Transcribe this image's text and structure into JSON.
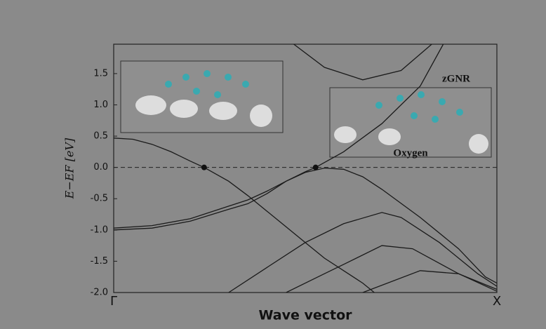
{
  "chart_data": {
    "type": "line",
    "xlabel": "Wave vector",
    "ylabel": "E−EF [eV]",
    "xlim": [
      0,
      1
    ],
    "ylim": [
      -2.0,
      1.97
    ],
    "xticks": [
      {
        "value": 0,
        "label": "Γ"
      },
      {
        "value": 1,
        "label": "X"
      }
    ],
    "yticks": [
      {
        "value": -2,
        "label": "-2.0"
      },
      -1.5,
      {
        "value": -1,
        "label": "-1.0"
      },
      -0.5,
      {
        "value": 0,
        "label": "0.0"
      },
      0.5,
      {
        "value": 1,
        "label": "1.0"
      },
      1.5
    ],
    "grid": false,
    "reference_line": 0,
    "annotations": [
      "zGNR",
      "Oxygen"
    ],
    "fermi_points": {
      "x": [
        0.236,
        0.527
      ],
      "y": [
        0,
        0
      ],
      "color": "#111111"
    },
    "series": [
      {
        "color": "#1a1a1a",
        "x": [
          0,
          0.05,
          0.1,
          0.15,
          0.2,
          0.236,
          0.3,
          0.35,
          0.4,
          0.45,
          0.5,
          0.55,
          0.6,
          0.65,
          0.68
        ],
        "values": [
          0.47,
          0.45,
          0.37,
          0.25,
          0.1,
          0,
          -0.22,
          -0.45,
          -0.7,
          -0.95,
          -1.2,
          -1.45,
          -1.65,
          -1.85,
          -2.0
        ]
      },
      {
        "color": "#1a1a1a",
        "x": [
          0,
          0.1,
          0.2,
          0.3,
          0.35,
          0.4,
          0.45,
          0.5,
          0.527,
          0.6,
          0.7,
          0.8,
          0.86
        ],
        "values": [
          -0.97,
          -0.93,
          -0.82,
          -0.62,
          -0.52,
          -0.38,
          -0.22,
          -0.07,
          0,
          0.25,
          0.7,
          1.3,
          1.97
        ]
      },
      {
        "color": "#1a1a1a",
        "x": [
          0,
          0.1,
          0.2,
          0.3,
          0.35,
          0.4,
          0.45,
          0.5,
          0.55,
          0.6,
          0.65,
          0.7,
          0.8,
          0.9,
          0.97,
          1
        ],
        "values": [
          -1.0,
          -0.97,
          -0.86,
          -0.67,
          -0.58,
          -0.42,
          -0.22,
          -0.08,
          -0.01,
          -0.03,
          -0.15,
          -0.35,
          -0.8,
          -1.3,
          -1.75,
          -1.85
        ]
      },
      {
        "color": "#1a1a1a",
        "x": [
          0.3,
          0.4,
          0.5,
          0.6,
          0.7,
          0.75,
          0.85,
          0.95,
          1
        ],
        "values": [
          -2.0,
          -1.6,
          -1.2,
          -0.9,
          -0.72,
          -0.8,
          -1.2,
          -1.7,
          -1.9
        ]
      },
      {
        "color": "#1a1a1a",
        "x": [
          0.45,
          0.55,
          0.6,
          0.7,
          0.78,
          0.9,
          1
        ],
        "values": [
          -2.0,
          -1.7,
          -1.55,
          -1.25,
          -1.3,
          -1.7,
          -1.95
        ]
      },
      {
        "color": "#1a1a1a",
        "x": [
          0.65,
          0.8,
          0.9,
          1
        ],
        "values": [
          -2.0,
          -1.65,
          -1.7,
          -1.98
        ]
      },
      {
        "color": "#1a1a1a",
        "x": [
          0.47,
          0.55,
          0.65,
          0.75,
          0.83
        ],
        "values": [
          1.97,
          1.6,
          1.4,
          1.55,
          1.97
        ]
      }
    ]
  }
}
